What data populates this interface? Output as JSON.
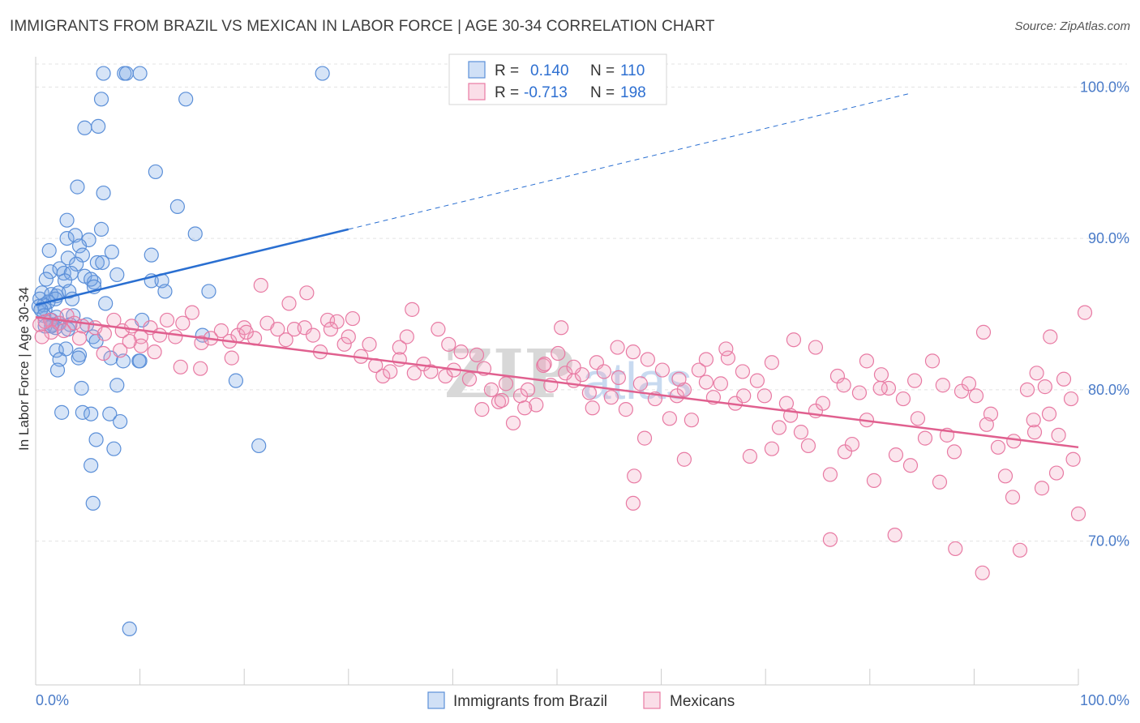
{
  "title": "IMMIGRANTS FROM BRAZIL VS MEXICAN IN LABOR FORCE | AGE 30-34 CORRELATION CHART",
  "source": "Source: ZipAtlas.com",
  "watermark": {
    "zip": "ZIP",
    "atlas": "atlas"
  },
  "colors": {
    "blue": "#5b8fd8",
    "blue_fill": "rgba(120,165,230,0.30)",
    "blue_line": "#2a6fd1",
    "pink": "#e87aa3",
    "pink_fill": "rgba(240,160,190,0.28)",
    "pink_line": "#e0608f",
    "grid": "#e3e3e3",
    "tick": "#4a7bc8"
  },
  "legend": {
    "rows": [
      {
        "r_label": "R = ",
        "r_value": "0.140",
        "n_label": "N = ",
        "n_value": "110"
      },
      {
        "r_label": "R = ",
        "r_value": "-0.713",
        "n_label": "N = ",
        "n_value": "198"
      }
    ]
  },
  "chart_data": {
    "type": "scatter",
    "title": "IMMIGRANTS FROM BRAZIL VS MEXICAN IN LABOR FORCE | AGE 30-34 CORRELATION CHART",
    "xlabel": "",
    "ylabel": "In Labor Force | Age 30-34",
    "xlim": [
      0,
      100
    ],
    "ylim": [
      60.5,
      102
    ],
    "x_tick_labels": [
      "0.0%",
      "100.0%"
    ],
    "y_ticks": [
      70,
      80,
      90,
      100
    ],
    "y_tick_labels": [
      "70.0%",
      "80.0%",
      "90.0%",
      "100.0%"
    ],
    "grid": true,
    "legend_position": "bottom-center",
    "series": [
      {
        "name": "Immigrants from Brazil",
        "color": "#5b8fd8",
        "r": 0.14,
        "n": 110,
        "trend": {
          "x0": 0,
          "y0": 85.6,
          "x1": 30,
          "y1": 90.6,
          "dashed_to_x": 84,
          "dashed_to_y": 99.6
        },
        "points": [
          [
            6.5,
            100.9
          ],
          [
            8.5,
            100.9
          ],
          [
            8.7,
            100.9
          ],
          [
            10,
            100.9
          ],
          [
            27.5,
            100.9
          ],
          [
            6.3,
            99.2
          ],
          [
            14.4,
            99.2
          ],
          [
            4.7,
            97.3
          ],
          [
            6.0,
            97.4
          ],
          [
            11.5,
            94.4
          ],
          [
            4.0,
            93.4
          ],
          [
            6.5,
            93.0
          ],
          [
            13.6,
            92.1
          ],
          [
            3.0,
            91.2
          ],
          [
            6.3,
            90.6
          ],
          [
            15.3,
            90.3
          ],
          [
            3.0,
            90.0
          ],
          [
            3.8,
            90.2
          ],
          [
            5.1,
            89.9
          ],
          [
            4.2,
            89.5
          ],
          [
            1.3,
            89.2
          ],
          [
            3.1,
            88.7
          ],
          [
            4.5,
            88.9
          ],
          [
            7.3,
            89.1
          ],
          [
            11.1,
            88.9
          ],
          [
            3.9,
            88.3
          ],
          [
            5.9,
            88.4
          ],
          [
            6.4,
            88.4
          ],
          [
            1.4,
            87.8
          ],
          [
            2.3,
            88.0
          ],
          [
            2.7,
            87.7
          ],
          [
            3.4,
            87.7
          ],
          [
            4.7,
            87.5
          ],
          [
            7.8,
            87.6
          ],
          [
            5.6,
            87.1
          ],
          [
            1.0,
            87.3
          ],
          [
            2.8,
            87.2
          ],
          [
            5.3,
            87.3
          ],
          [
            11.1,
            87.2
          ],
          [
            12.1,
            87.2
          ],
          [
            5.6,
            86.8
          ],
          [
            0.6,
            86.4
          ],
          [
            1.5,
            86.3
          ],
          [
            2.0,
            86.2
          ],
          [
            2.2,
            86.4
          ],
          [
            1.9,
            86.0
          ],
          [
            3.2,
            86.5
          ],
          [
            3.5,
            86.0
          ],
          [
            12.4,
            86.5
          ],
          [
            16.6,
            86.5
          ],
          [
            0.4,
            86.0
          ],
          [
            1.2,
            85.8
          ],
          [
            0.8,
            85.6
          ],
          [
            0.3,
            85.5
          ],
          [
            0.9,
            85.3
          ],
          [
            0.5,
            85.3
          ],
          [
            6.7,
            85.7
          ],
          [
            0.8,
            84.9
          ],
          [
            1.5,
            84.6
          ],
          [
            2.0,
            84.8
          ],
          [
            3.6,
            84.9
          ],
          [
            10.2,
            84.6
          ],
          [
            1.6,
            84.3
          ],
          [
            2.2,
            84.4
          ],
          [
            0.9,
            84.2
          ],
          [
            3.3,
            84.3
          ],
          [
            1.9,
            84.1
          ],
          [
            1.5,
            84.2
          ],
          [
            4.9,
            84.3
          ],
          [
            3.1,
            84.0
          ],
          [
            16.0,
            83.6
          ],
          [
            5.5,
            83.5
          ],
          [
            5.8,
            83.2
          ],
          [
            2.0,
            82.6
          ],
          [
            2.9,
            82.7
          ],
          [
            4.2,
            82.3
          ],
          [
            4.1,
            82.1
          ],
          [
            7.2,
            82.1
          ],
          [
            2.3,
            82.0
          ],
          [
            8.4,
            81.9
          ],
          [
            9.9,
            81.9
          ],
          [
            10.0,
            81.9
          ],
          [
            2.1,
            81.3
          ],
          [
            19.2,
            80.6
          ],
          [
            7.8,
            80.3
          ],
          [
            4.4,
            80.1
          ],
          [
            2.5,
            78.5
          ],
          [
            4.5,
            78.5
          ],
          [
            5.3,
            78.4
          ],
          [
            7.1,
            78.4
          ],
          [
            8.1,
            77.9
          ],
          [
            5.8,
            76.7
          ],
          [
            7.5,
            76.1
          ],
          [
            21.4,
            76.3
          ],
          [
            5.3,
            75.0
          ],
          [
            5.5,
            72.5
          ],
          [
            9.0,
            64.2
          ]
        ]
      },
      {
        "name": "Mexicans",
        "color": "#e87aa3",
        "r": -0.713,
        "n": 198,
        "trend": {
          "x0": 0,
          "y0": 84.8,
          "x1": 100,
          "y1": 76.2
        },
        "points": [
          [
            0.4,
            84.3
          ],
          [
            1.4,
            84.6
          ],
          [
            2.3,
            84.4
          ],
          [
            3.0,
            84.9
          ],
          [
            3.7,
            84.4
          ],
          [
            4.5,
            84.2
          ],
          [
            5.7,
            84.1
          ],
          [
            6.6,
            83.7
          ],
          [
            7.5,
            84.6
          ],
          [
            8.3,
            83.9
          ],
          [
            9.2,
            84.2
          ],
          [
            10.1,
            83.5
          ],
          [
            11.0,
            84.1
          ],
          [
            11.9,
            83.6
          ],
          [
            12.6,
            84.6
          ],
          [
            13.4,
            83.5
          ],
          [
            14.1,
            84.4
          ],
          [
            15.0,
            85.1
          ],
          [
            15.9,
            83.1
          ],
          [
            16.8,
            83.4
          ],
          [
            17.8,
            83.9
          ],
          [
            18.6,
            83.2
          ],
          [
            19.4,
            83.6
          ],
          [
            20.0,
            84.1
          ],
          [
            21.0,
            83.4
          ],
          [
            22.2,
            84.4
          ],
          [
            23.2,
            84.0
          ],
          [
            24.0,
            83.3
          ],
          [
            24.8,
            84.0
          ],
          [
            25.8,
            84.1
          ],
          [
            26.6,
            83.6
          ],
          [
            27.3,
            82.5
          ],
          [
            28.0,
            84.6
          ],
          [
            28.9,
            84.5
          ],
          [
            29.6,
            83.0
          ],
          [
            30.4,
            84.7
          ],
          [
            31.2,
            82.2
          ],
          [
            32.0,
            83.0
          ],
          [
            32.6,
            81.6
          ],
          [
            33.3,
            80.9
          ],
          [
            34.0,
            81.2
          ],
          [
            34.9,
            82.8
          ],
          [
            35.6,
            83.5
          ],
          [
            36.3,
            81.1
          ],
          [
            37.2,
            81.7
          ],
          [
            37.9,
            81.2
          ],
          [
            38.6,
            84.0
          ],
          [
            39.3,
            80.9
          ],
          [
            40.1,
            81.3
          ],
          [
            40.8,
            82.5
          ],
          [
            41.6,
            80.7
          ],
          [
            42.3,
            82.3
          ],
          [
            43.0,
            81.4
          ],
          [
            43.7,
            80.0
          ],
          [
            44.4,
            79.2
          ],
          [
            45.1,
            80.4
          ],
          [
            45.8,
            77.8
          ],
          [
            46.5,
            79.6
          ],
          [
            47.2,
            80.0
          ],
          [
            48.0,
            79.0
          ],
          [
            48.7,
            81.6
          ],
          [
            49.4,
            80.3
          ],
          [
            50.1,
            82.4
          ],
          [
            50.8,
            81.1
          ],
          [
            51.6,
            80.6
          ],
          [
            52.4,
            81.0
          ],
          [
            53.1,
            79.8
          ],
          [
            53.8,
            81.8
          ],
          [
            54.5,
            81.2
          ],
          [
            55.2,
            79.5
          ],
          [
            55.9,
            80.8
          ],
          [
            56.6,
            78.7
          ],
          [
            57.3,
            82.5
          ],
          [
            58.0,
            80.4
          ],
          [
            58.7,
            82.0
          ],
          [
            59.4,
            79.4
          ],
          [
            60.1,
            81.3
          ],
          [
            60.8,
            78.1
          ],
          [
            61.5,
            79.6
          ],
          [
            62.2,
            80.0
          ],
          [
            62.9,
            78.0
          ],
          [
            63.6,
            81.3
          ],
          [
            64.3,
            80.5
          ],
          [
            65.0,
            79.5
          ],
          [
            65.7,
            80.4
          ],
          [
            66.4,
            82.1
          ],
          [
            67.1,
            79.1
          ],
          [
            67.8,
            81.2
          ],
          [
            68.5,
            75.6
          ],
          [
            69.2,
            80.6
          ],
          [
            69.9,
            79.6
          ],
          [
            70.6,
            76.1
          ],
          [
            71.3,
            77.5
          ],
          [
            72.0,
            79.1
          ],
          [
            72.7,
            83.3
          ],
          [
            73.4,
            77.2
          ],
          [
            74.1,
            76.3
          ],
          [
            74.8,
            78.6
          ],
          [
            75.5,
            79.1
          ],
          [
            76.2,
            74.4
          ],
          [
            76.9,
            80.9
          ],
          [
            77.6,
            75.9
          ],
          [
            78.3,
            76.4
          ],
          [
            79.0,
            79.8
          ],
          [
            79.7,
            78.0
          ],
          [
            80.4,
            74.0
          ],
          [
            81.1,
            81.0
          ],
          [
            81.8,
            80.1
          ],
          [
            82.5,
            75.7
          ],
          [
            83.2,
            79.4
          ],
          [
            83.9,
            75.0
          ],
          [
            84.6,
            78.1
          ],
          [
            85.3,
            76.8
          ],
          [
            86.0,
            81.9
          ],
          [
            86.7,
            73.9
          ],
          [
            87.4,
            77.0
          ],
          [
            88.1,
            75.9
          ],
          [
            88.8,
            79.9
          ],
          [
            89.5,
            80.4
          ],
          [
            90.2,
            79.6
          ],
          [
            90.9,
            83.8
          ],
          [
            91.6,
            78.4
          ],
          [
            92.3,
            76.2
          ],
          [
            93.0,
            74.3
          ],
          [
            93.7,
            72.9
          ],
          [
            94.4,
            69.4
          ],
          [
            95.1,
            80.0
          ],
          [
            95.8,
            77.2
          ],
          [
            96.5,
            73.5
          ],
          [
            97.2,
            78.4
          ],
          [
            97.9,
            74.5
          ],
          [
            98.6,
            80.7
          ],
          [
            99.3,
            79.4
          ],
          [
            100.0,
            71.8
          ],
          [
            95.7,
            78.0
          ],
          [
            96.8,
            80.2
          ],
          [
            98.1,
            77.0
          ],
          [
            99.5,
            75.4
          ],
          [
            97.3,
            83.5
          ],
          [
            100.8,
            85.1
          ],
          [
            88.2,
            69.5
          ],
          [
            82.4,
            70.4
          ],
          [
            76.2,
            70.1
          ],
          [
            90.8,
            67.9
          ],
          [
            57.3,
            72.5
          ],
          [
            57.4,
            74.3
          ],
          [
            62.2,
            75.4
          ],
          [
            34.9,
            82.0
          ],
          [
            28.3,
            84.0
          ],
          [
            21.6,
            86.9
          ],
          [
            24.3,
            85.7
          ],
          [
            26.0,
            86.4
          ],
          [
            36.1,
            85.3
          ],
          [
            50.4,
            84.1
          ],
          [
            39.6,
            83.0
          ],
          [
            30.0,
            83.5
          ],
          [
            20.2,
            83.8
          ],
          [
            18.8,
            82.1
          ],
          [
            13.9,
            81.5
          ],
          [
            15.8,
            81.4
          ],
          [
            11.4,
            82.5
          ],
          [
            10.1,
            82.9
          ],
          [
            9.0,
            83.2
          ],
          [
            8.1,
            82.6
          ],
          [
            6.5,
            82.4
          ],
          [
            4.2,
            83.4
          ],
          [
            2.7,
            83.9
          ],
          [
            1.5,
            83.8
          ],
          [
            0.9,
            84.5
          ],
          [
            0.6,
            83.5
          ],
          [
            42.8,
            78.7
          ],
          [
            44.7,
            79.3
          ],
          [
            46.9,
            78.8
          ],
          [
            48.8,
            81.7
          ],
          [
            51.6,
            81.5
          ],
          [
            53.4,
            78.8
          ],
          [
            55.8,
            82.8
          ],
          [
            58.4,
            76.8
          ],
          [
            61.7,
            80.7
          ],
          [
            64.3,
            82.0
          ],
          [
            66.2,
            82.7
          ],
          [
            67.9,
            79.6
          ],
          [
            70.6,
            81.8
          ],
          [
            72.4,
            78.3
          ],
          [
            74.8,
            82.8
          ],
          [
            77.5,
            80.3
          ],
          [
            79.7,
            81.9
          ],
          [
            81.0,
            80.1
          ],
          [
            84.3,
            80.6
          ],
          [
            87.0,
            80.3
          ],
          [
            91.2,
            77.7
          ],
          [
            93.8,
            76.6
          ],
          [
            96.0,
            81.1
          ]
        ]
      }
    ]
  },
  "bottom_legend": [
    {
      "label": "Immigrants from Brazil"
    },
    {
      "label": "Mexicans"
    }
  ]
}
